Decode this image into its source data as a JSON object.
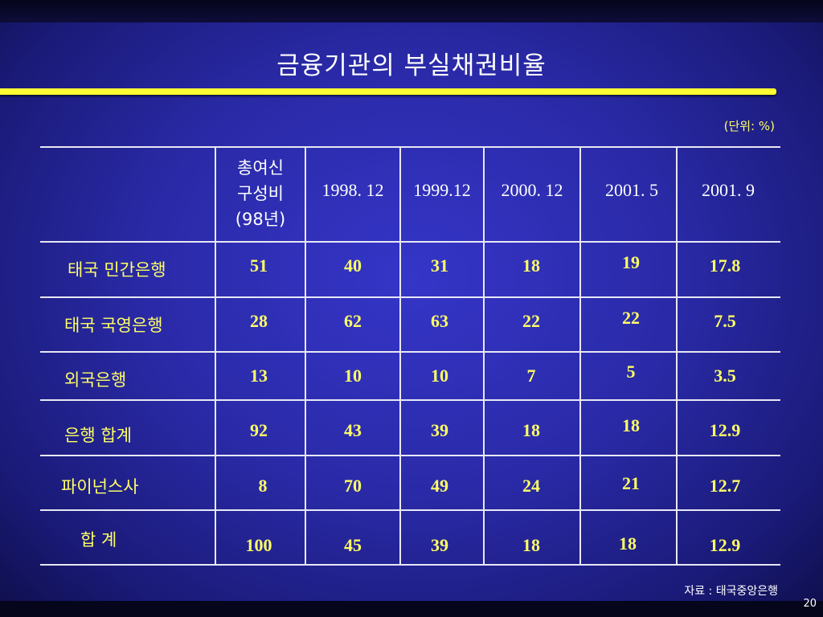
{
  "slide": {
    "title": "금융기관의 부실채권비율",
    "unit_note": "(단위: %)",
    "source": "자료 : 태국중앙은행",
    "page_number": "20",
    "accent_color": "#ffff33"
  },
  "table": {
    "col_headers": [
      "총여신\n구성비\n(98년)",
      "1998. 12",
      "1999.12",
      "2000. 12",
      "2001. 5",
      "2001. 9"
    ],
    "rows": [
      {
        "label": "태국 민간은행",
        "values": [
          "51",
          "40",
          "31",
          "18",
          "19",
          "17.8"
        ]
      },
      {
        "label": "태국 국영은행",
        "values": [
          "28",
          "62",
          "63",
          "22",
          "22",
          "7.5"
        ]
      },
      {
        "label": "외국은행",
        "values": [
          "13",
          "10",
          "10",
          "7",
          "5",
          "3.5"
        ]
      },
      {
        "label": "은행 합계",
        "values": [
          "92",
          "43",
          "39",
          "18",
          "18",
          "12.9"
        ]
      },
      {
        "label": "파이넌스사",
        "values": [
          "8",
          "70",
          "49",
          "24",
          "21",
          "12.7"
        ]
      },
      {
        "label": "합 계",
        "values": [
          "100",
          "45",
          "39",
          "18",
          "18",
          "12.9"
        ]
      }
    ]
  }
}
